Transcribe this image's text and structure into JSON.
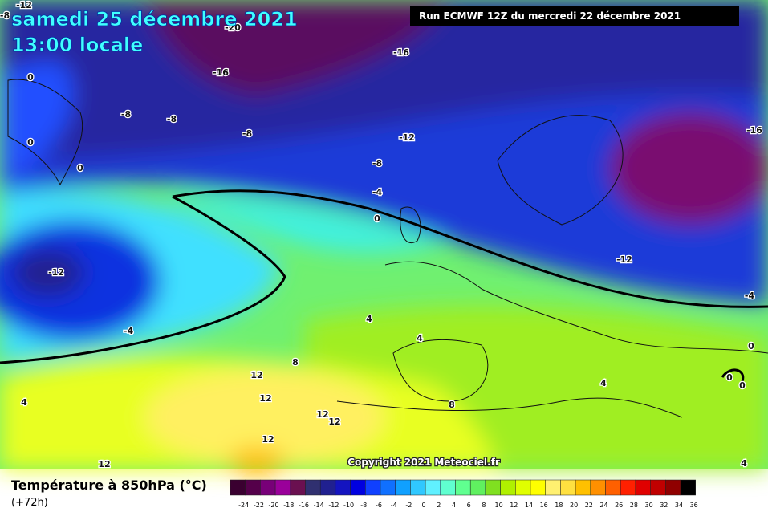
{
  "header": {
    "title": "samedi 25 décembre 2021",
    "time": "13:00 locale",
    "run": "Run ECMWF 12Z du mercredi 22 décembre 2021"
  },
  "map": {
    "contour_labels": [
      -12,
      -8,
      -20,
      -16,
      -16,
      0,
      -8,
      -8,
      -8,
      -12,
      -16,
      0,
      0,
      -8,
      -4,
      0,
      -12,
      -12,
      -4,
      4,
      -4,
      4,
      0,
      8,
      12,
      0,
      4,
      0,
      12,
      4,
      8,
      12,
      12,
      12,
      12,
      4
    ],
    "copyright": "Copyright 2021 Meteociel.fr"
  },
  "legend": {
    "title": "Température à 850hPa (°C)",
    "subtitle": "(+72h)",
    "ticks": [
      -24,
      -22,
      -20,
      -18,
      -16,
      -14,
      -12,
      -10,
      -8,
      -6,
      -4,
      -2,
      0,
      2,
      4,
      6,
      8,
      10,
      12,
      14,
      16,
      18,
      20,
      22,
      24,
      26,
      28,
      30,
      32,
      34,
      36
    ],
    "colors": [
      "#3a0030",
      "#55004a",
      "#780078",
      "#9a009a",
      "#6a1050",
      "#303070",
      "#202090",
      "#1414c0",
      "#0000e0",
      "#1040ff",
      "#1070ff",
      "#10a0ff",
      "#30c8ff",
      "#60f0ff",
      "#60ffd0",
      "#60ff90",
      "#60f060",
      "#80e020",
      "#b0f000",
      "#e0ff00",
      "#ffff00",
      "#fff070",
      "#ffe040",
      "#ffc000",
      "#ff9000",
      "#ff6000",
      "#ff2000",
      "#e00000",
      "#c00000",
      "#900000",
      "#000000"
    ]
  }
}
